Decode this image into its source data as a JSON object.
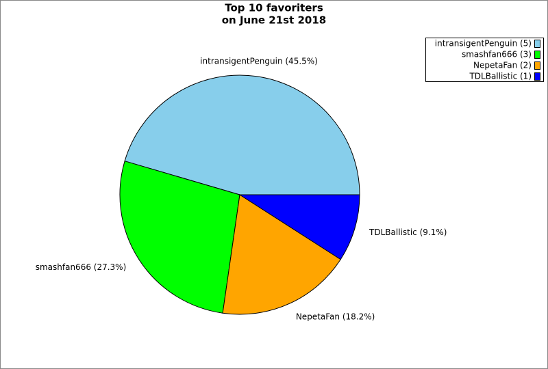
{
  "chart_data": {
    "type": "pie",
    "title": "Top 10 favoriters",
    "subtitle": "on June 21st 2018",
    "categories": [
      "intransigentPenguin",
      "smashfan666",
      "NepetaFan",
      "TDLBallistic"
    ],
    "values": [
      45.5,
      27.3,
      18.2,
      9.1
    ],
    "value_labels": [
      "intransigentPenguin (45.5%)",
      "smashfan666 (27.3%)",
      "NepetaFan (18.2%)",
      "TDLBallistic (9.1%)"
    ],
    "legend_labels": [
      "intransigentPenguin (5)",
      "smashfan666 (3)",
      "NepetaFan (2)",
      "TDLBallistic (1)"
    ],
    "colors": [
      "#87ceeb",
      "#00ff00",
      "#ffa500",
      "#0000ff"
    ],
    "legend": "top-right"
  }
}
